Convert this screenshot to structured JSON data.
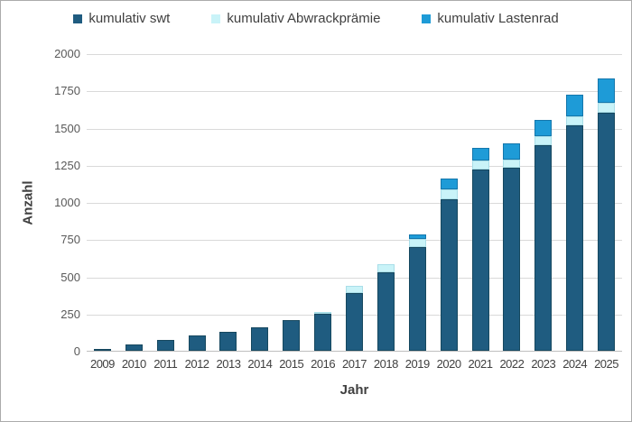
{
  "figure": {
    "background": "#FFFFFF",
    "border_color": "#ABABAB",
    "gridline_color": "#D9D9D9",
    "axisline_color": "#BFBFBF",
    "label_color": "#404040",
    "tick_color": "#595959"
  },
  "axes": {
    "y_title": "Anzahl",
    "x_title": "Jahr"
  },
  "chart_data": {
    "type": "bar",
    "stacked": true,
    "title": "",
    "xlabel": "Jahr",
    "ylabel": "Anzahl",
    "ylim": [
      0,
      2000
    ],
    "yticks": [
      0,
      250,
      500,
      750,
      1000,
      1250,
      1500,
      1750,
      2000
    ],
    "grid": "horizontal",
    "legend_position": "top",
    "categories": [
      "2009",
      "2010",
      "2011",
      "2012",
      "2013",
      "2014",
      "2015",
      "2016",
      "2017",
      "2018",
      "2019",
      "2020",
      "2021",
      "2022",
      "2023",
      "2024",
      "2025"
    ],
    "series": [
      {
        "name": "kumulativ swt",
        "color": "#1F5C80",
        "border_color": "#16485F",
        "values": [
          15,
          40,
          70,
          105,
          130,
          155,
          205,
          250,
          390,
          530,
          700,
          1020,
          1220,
          1230,
          1380,
          1515,
          1600
        ]
      },
      {
        "name": "kumulativ Abwrackprämie",
        "color": "#C9F3F8",
        "border_color": "#A9DEE8",
        "values": [
          0,
          0,
          0,
          0,
          0,
          0,
          0,
          10,
          45,
          50,
          50,
          65,
          60,
          55,
          60,
          60,
          65
        ]
      },
      {
        "name": "kumulativ Lastenrad",
        "color": "#1E9BD7",
        "border_color": "#1477AC",
        "values": [
          0,
          0,
          0,
          0,
          0,
          0,
          0,
          0,
          0,
          0,
          30,
          70,
          85,
          110,
          110,
          145,
          165
        ]
      }
    ]
  }
}
